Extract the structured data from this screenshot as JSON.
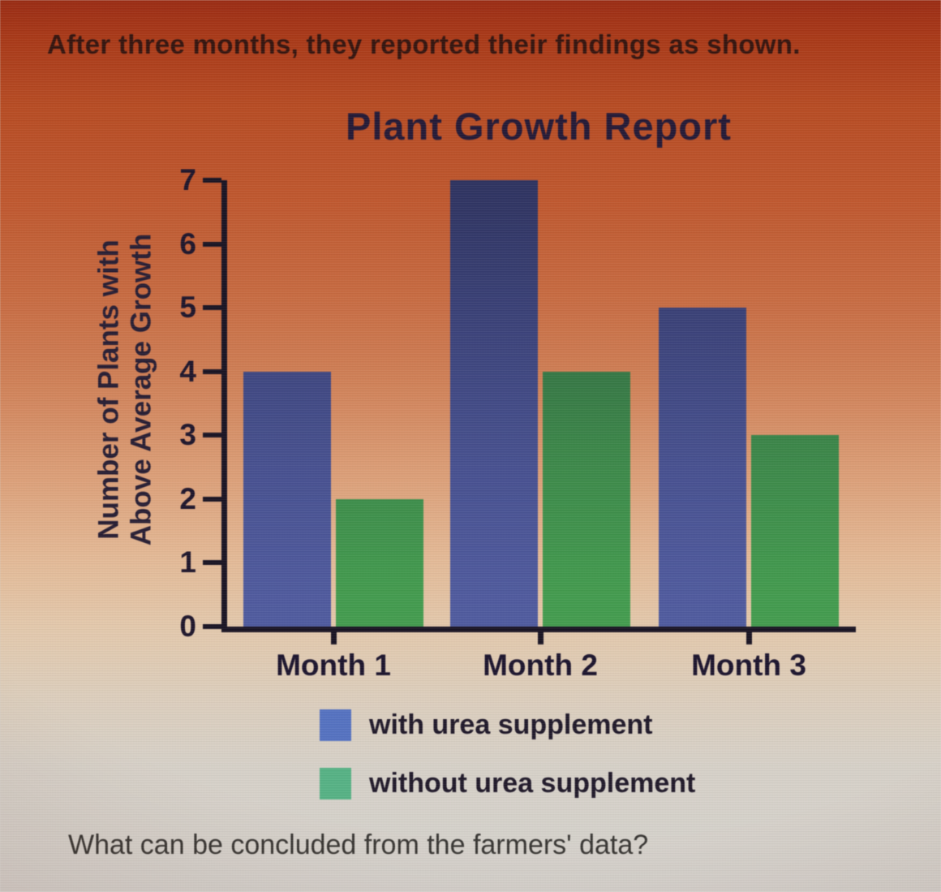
{
  "page": {
    "intro_text": "After three months, they reported their findings as shown.",
    "question_text": "What can be concluded from the farmers' data?"
  },
  "chart_data": {
    "type": "bar",
    "title": "Plant Growth Report",
    "categories": [
      "Month 1",
      "Month 2",
      "Month 3"
    ],
    "series": [
      {
        "name": "with urea supplement",
        "values": [
          4,
          7,
          5
        ],
        "color": "#515da6",
        "legend_color": "#5472c4"
      },
      {
        "name": "without urea supplement",
        "values": [
          2,
          4,
          3
        ],
        "color": "#44a350",
        "legend_color": "#55b585"
      }
    ],
    "ylabel_lines": [
      "Number of Plants with",
      "Above Average Growth"
    ],
    "xlabel": "",
    "ylim": [
      0,
      7
    ],
    "yticks": [
      0,
      1,
      2,
      3,
      4,
      5,
      6,
      7
    ],
    "grid": false,
    "legend_position": "bottom"
  },
  "colors": {
    "background_top": "#9d2910",
    "background_mid": "#d37f54",
    "background_bottom": "#d9d6d1",
    "axis": "#161020",
    "title_text": "#211634",
    "intro_text": "#31100a",
    "question_text": "#33312e"
  }
}
